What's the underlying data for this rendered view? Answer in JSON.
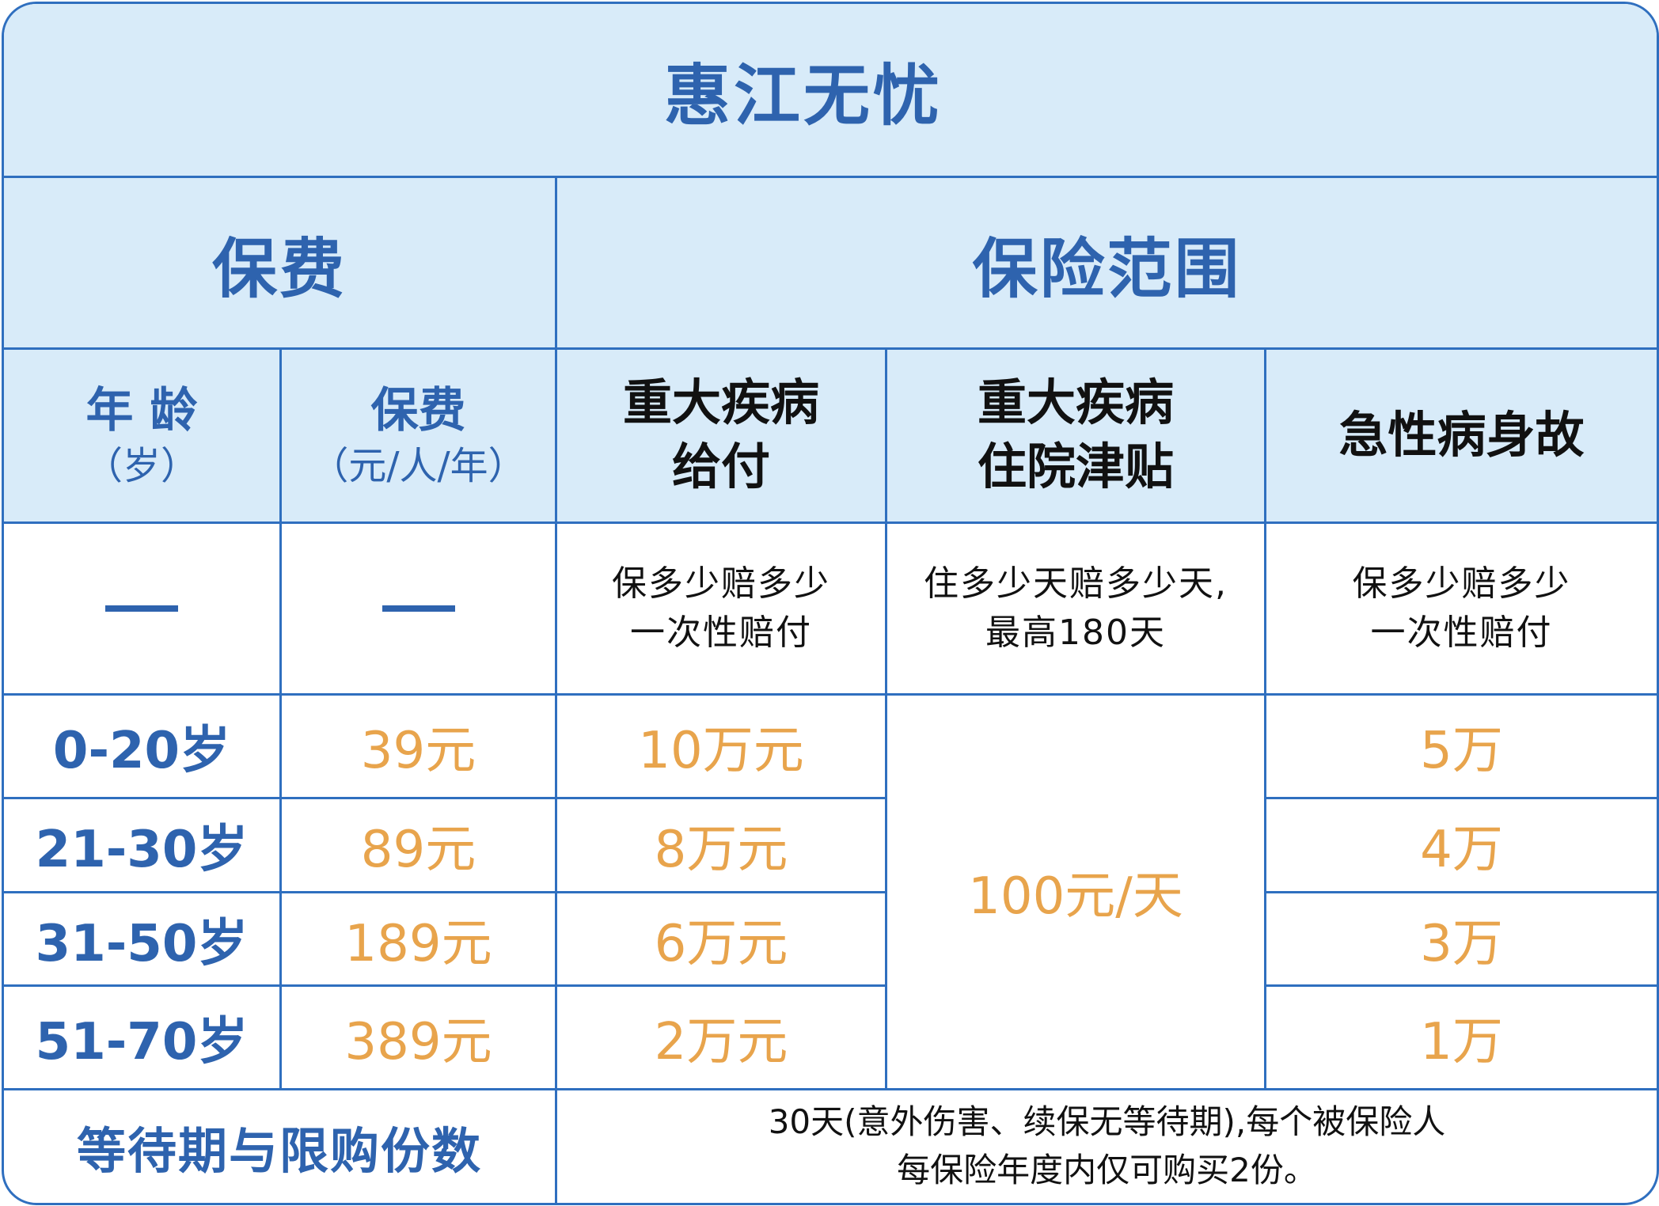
{
  "title": "惠江无忧",
  "sections": {
    "premium": "保费",
    "coverage": "保险范围"
  },
  "columns": {
    "age": {
      "label": "年 龄",
      "unit": "（岁）"
    },
    "premium": {
      "label": "保费",
      "unit": "（元/人/年）"
    },
    "critical_payout": {
      "line1": "重大疾病",
      "line2": "给付"
    },
    "critical_allowance": {
      "line1": "重大疾病",
      "line2": "住院津贴"
    },
    "acute_death": {
      "line1": "急性病身故"
    }
  },
  "descriptions": {
    "critical_payout": {
      "line1": "保多少赔多少",
      "line2": "一次性赔付"
    },
    "critical_allowance": {
      "line1": "住多少天赔多少天,",
      "line2": "最高180天"
    },
    "acute_death": {
      "line1": "保多少赔多少",
      "line2": "一次性赔付"
    }
  },
  "rows": [
    {
      "age": "0-20岁",
      "premium": "39元",
      "critical": "10万元",
      "acute": "5万"
    },
    {
      "age": "21-30岁",
      "premium": "89元",
      "critical": "8万元",
      "acute": "4万"
    },
    {
      "age": "31-50岁",
      "premium": "189元",
      "critical": "6万元",
      "acute": "3万"
    },
    {
      "age": "51-70岁",
      "premium": "389元",
      "critical": "2万元",
      "acute": "1万"
    }
  ],
  "allowance_value": "100元/天",
  "footer": {
    "label": "等待期与限购份数",
    "line1": "30天(意外伤害、续保无等待期),每个被保险人",
    "line2": "每保险年度内仅可购买2份。"
  },
  "colors": {
    "border": "#2f6fbf",
    "header_bg": "#d8ebf9",
    "blue_text": "#2e63ae",
    "orange_text": "#e8a44c"
  }
}
